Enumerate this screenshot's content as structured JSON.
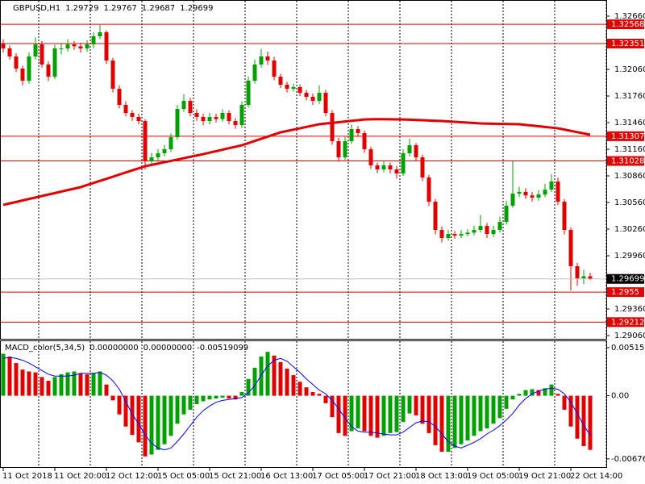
{
  "chart_data": {
    "type": "candlestick",
    "symbol": "GBPUSD,H1",
    "categories": [
      "11 Oct 2018",
      null,
      null,
      null,
      null,
      null,
      null,
      null,
      "11 Oct 20:00",
      null,
      null,
      null,
      null,
      null,
      null,
      null,
      "12 Oct 12:00",
      null,
      null,
      null,
      null,
      null,
      null,
      null,
      "15 Oct 05:00",
      null,
      null,
      null,
      null,
      null,
      null,
      null,
      "15 Oct 21:00",
      null,
      null,
      null,
      null,
      null,
      null,
      null,
      "16 Oct 13:00",
      null,
      null,
      null,
      null,
      null,
      null,
      null,
      "17 Oct 05:00",
      null,
      null,
      null,
      null,
      null,
      null,
      null,
      "17 Oct 21:00",
      null,
      null,
      null,
      null,
      null,
      null,
      null,
      "18 Oct 13:00",
      null,
      null,
      null,
      null,
      null,
      null,
      null,
      "19 Oct 05:00",
      null,
      null,
      null,
      null,
      null,
      null,
      null,
      "19 Oct 21:00",
      null,
      null,
      null,
      null,
      null,
      null,
      null,
      "22 Oct 14:00",
      null,
      null,
      null
    ],
    "open": [
      1.3235,
      1.32296,
      1.32206,
      1.32069,
      1.31933,
      1.32206,
      1.32342,
      1.32115,
      1.31978,
      1.32296,
      1.32296,
      1.32342,
      1.3232,
      1.32296,
      1.32342,
      1.32433,
      1.32478,
      1.3216,
      1.31842,
      1.3166,
      1.31569,
      1.31524,
      1.31478,
      1.31024,
      1.31069,
      1.31115,
      1.3116,
      1.31296,
      1.31615,
      1.31705,
      1.31569,
      1.31524,
      1.31478,
      1.31524,
      1.315,
      1.31569,
      1.31478,
      1.31433,
      1.3166,
      1.31933,
      1.32115,
      1.32206,
      1.3216,
      1.31978,
      1.31887,
      1.31842,
      1.3186,
      1.31796,
      1.31751,
      1.31705,
      1.31796,
      1.31569,
      1.31251,
      1.31069,
      1.31251,
      1.31387,
      1.31342,
      1.3116,
      1.30978,
      1.30933,
      1.30978,
      1.30933,
      1.30887,
      1.31115,
      1.31205,
      1.31069,
      1.30842,
      1.30569,
      1.30251,
      1.3016,
      1.30205,
      1.30187,
      1.30205,
      1.3022,
      1.30251,
      1.30296,
      1.30205,
      1.30251,
      1.30342,
      1.30524,
      1.3066,
      1.3068,
      1.3064,
      1.30615,
      1.3065,
      1.30705,
      1.30796,
      1.30569,
      1.30251,
      1.29842,
      1.29705,
      1.29729
    ],
    "high": [
      1.324,
      1.3233,
      1.3224,
      1.321,
      1.3225,
      1.3242,
      1.3238,
      1.3215,
      1.3234,
      1.3236,
      1.324,
      1.3238,
      1.3236,
      1.3239,
      1.3248,
      1.3256,
      1.325,
      1.3219,
      1.3188,
      1.317,
      1.316,
      1.3156,
      1.315,
      1.3112,
      1.3116,
      1.3121,
      1.3134,
      1.3166,
      1.3178,
      1.3174,
      1.3161,
      1.3156,
      1.3157,
      1.3156,
      1.3161,
      1.316,
      1.3151,
      1.317,
      1.3198,
      1.3217,
      1.3229,
      1.3226,
      1.322,
      1.3201,
      1.3192,
      1.319,
      1.3189,
      1.3183,
      1.3179,
      1.3188,
      1.3183,
      1.316,
      1.3129,
      1.313,
      1.3144,
      1.3142,
      1.3137,
      1.3119,
      1.3101,
      1.3102,
      1.3101,
      1.3097,
      1.3116,
      1.3128,
      1.3123,
      1.311,
      1.3087,
      1.306,
      1.3029,
      1.3025,
      1.3024,
      1.3025,
      1.3026,
      1.303,
      1.3042,
      1.3033,
      1.303,
      1.304,
      1.3058,
      1.31024,
      1.3074,
      1.3072,
      1.3068,
      1.307,
      1.3077,
      1.3088,
      1.3084,
      1.306,
      1.3028,
      1.2988,
      1.298,
      1.29767
    ],
    "low": [
      1.3225,
      1.3217,
      1.3203,
      1.3188,
      1.319,
      1.3217,
      1.3208,
      1.3193,
      1.3195,
      1.3223,
      1.3226,
      1.3228,
      1.3225,
      1.3226,
      1.323,
      1.324,
      1.3212,
      1.318,
      1.3162,
      1.3153,
      1.3148,
      1.3144,
      1.30933,
      1.3099,
      1.3103,
      1.3108,
      1.3113,
      1.3127,
      1.3158,
      1.3153,
      1.3148,
      1.3143,
      1.3144,
      1.3146,
      1.3147,
      1.3144,
      1.3139,
      1.314,
      1.3163,
      1.319,
      1.3208,
      1.3211,
      1.3194,
      1.3185,
      1.318,
      1.3181,
      1.3176,
      1.3171,
      1.3166,
      1.3167,
      1.3153,
      1.3121,
      1.3102,
      1.3104,
      1.3122,
      1.313,
      1.3112,
      1.3094,
      1.3089,
      1.309,
      1.3089,
      1.3083,
      1.3086,
      1.3108,
      1.3103,
      1.308,
      1.3052,
      1.302,
      1.3011,
      1.3013,
      1.3015,
      1.3016,
      1.3018,
      1.3019,
      1.3022,
      1.3016,
      1.3017,
      1.3022,
      1.3031,
      1.305,
      1.3062,
      1.306,
      1.3057,
      1.3058,
      1.3062,
      1.3068,
      1.3053,
      1.302,
      1.29569,
      1.2962,
      1.2964,
      1.29687
    ],
    "close": [
      1.32296,
      1.32206,
      1.32069,
      1.31933,
      1.32206,
      1.32342,
      1.32115,
      1.31978,
      1.32296,
      1.32296,
      1.32342,
      1.3232,
      1.32296,
      1.32342,
      1.32433,
      1.32478,
      1.3216,
      1.31842,
      1.3166,
      1.31569,
      1.31524,
      1.31478,
      1.31024,
      1.31069,
      1.31115,
      1.3116,
      1.31296,
      1.31615,
      1.31705,
      1.31569,
      1.31524,
      1.31478,
      1.31524,
      1.315,
      1.31569,
      1.31478,
      1.31433,
      1.3166,
      1.31933,
      1.32115,
      1.32206,
      1.3216,
      1.31978,
      1.31887,
      1.31842,
      1.3186,
      1.31796,
      1.31751,
      1.31705,
      1.31796,
      1.31569,
      1.31251,
      1.31069,
      1.31251,
      1.31387,
      1.31342,
      1.3116,
      1.30978,
      1.30933,
      1.30978,
      1.30933,
      1.30887,
      1.31115,
      1.31205,
      1.31069,
      1.30842,
      1.30569,
      1.30251,
      1.3016,
      1.30205,
      1.30187,
      1.30205,
      1.3022,
      1.30251,
      1.30296,
      1.30205,
      1.30251,
      1.30342,
      1.30524,
      1.3066,
      1.3068,
      1.3064,
      1.30615,
      1.3065,
      1.30705,
      1.30796,
      1.30569,
      1.30251,
      1.29842,
      1.29705,
      1.29729,
      1.29699
    ],
    "up_color": "#00a000",
    "down_color": "#e00000",
    "ma": {
      "color": "#e00000",
      "values": [
        1.30533,
        1.3055,
        1.30566,
        1.30583,
        1.306,
        1.30616,
        1.30633,
        1.3065,
        1.30666,
        1.30683,
        1.307,
        1.30716,
        1.30733,
        1.30757,
        1.3078,
        1.30804,
        1.30827,
        1.30851,
        1.30875,
        1.30898,
        1.30922,
        1.30945,
        1.30969,
        1.30984,
        1.30999,
        1.31014,
        1.31029,
        1.31044,
        1.3106,
        1.31075,
        1.3109,
        1.31105,
        1.31122,
        1.31138,
        1.31155,
        1.31172,
        1.31188,
        1.31205,
        1.31229,
        1.31254,
        1.31278,
        1.31302,
        1.31327,
        1.31351,
        1.31366,
        1.31381,
        1.31396,
        1.31412,
        1.31427,
        1.31442,
        1.3145,
        1.31457,
        1.31465,
        1.31473,
        1.31481,
        1.31488,
        1.31496,
        1.31498,
        1.31499,
        1.31499,
        1.31498,
        1.31497,
        1.31496,
        1.31493,
        1.3149,
        1.31487,
        1.31484,
        1.31481,
        1.31478,
        1.31474,
        1.31469,
        1.31465,
        1.3146,
        1.31456,
        1.31451,
        1.31449,
        1.31448,
        1.31446,
        1.31445,
        1.31443,
        1.31442,
        1.31434,
        1.31427,
        1.31419,
        1.31411,
        1.31404,
        1.31396,
        1.31382,
        1.31367,
        1.31353,
        1.31338,
        1.31324
      ]
    },
    "levels": [
      1.32568,
      1.32351,
      1.31307,
      1.31028,
      1.2955,
      1.29212
    ],
    "level_color": "#e00000",
    "current_price_color": "#c0c0c0",
    "ylim": [
      1.29024,
      1.32842
    ],
    "yticks": [
      {
        "value": 1.3266,
        "label": "1.32660"
      },
      {
        "value": 1.3206,
        "label": "1.32060"
      },
      {
        "value": 1.3176,
        "label": "1.31760"
      },
      {
        "value": 1.3146,
        "label": "1.31460"
      },
      {
        "value": 1.3116,
        "label": "1.31160"
      },
      {
        "value": 1.3086,
        "label": "1.30860"
      },
      {
        "value": 1.3056,
        "label": "1.30560"
      },
      {
        "value": 1.3026,
        "label": "1.30260"
      },
      {
        "value": 1.2996,
        "label": "1.29960"
      },
      {
        "value": 1.2936,
        "label": "1.29360"
      },
      {
        "value": 1.2906,
        "label": "1.29060"
      }
    ],
    "indicator": {
      "type": "macd",
      "title": "MACD_color(5,34,5)",
      "readout": [
        "0.00000000",
        "0.00000000",
        "-0.00519099"
      ],
      "histogram": [
        0.0045,
        0.0042,
        0.0035,
        0.0028,
        0.0026,
        0.0025,
        0.002,
        0.0016,
        0.002,
        0.0023,
        0.0025,
        0.0026,
        0.0024,
        0.0023,
        0.0024,
        0.0026,
        0.0012,
        -0.0005,
        -0.002,
        -0.0033,
        -0.0042,
        -0.005,
        -0.0065,
        -0.0063,
        -0.0058,
        -0.0052,
        -0.0043,
        -0.003,
        -0.002,
        -0.0015,
        -0.0009,
        -0.0006,
        -0.0004,
        -0.0003,
        -0.0002,
        -0.0003,
        -0.0004,
        0.0004,
        0.0018,
        0.003,
        0.0042,
        0.0047,
        0.0043,
        0.0036,
        0.0029,
        0.0022,
        0.0015,
        0.0009,
        0.0004,
        0.0002,
        -0.0008,
        -0.0023,
        -0.004,
        -0.0043,
        -0.0038,
        -0.0035,
        -0.0038,
        -0.0043,
        -0.0045,
        -0.0043,
        -0.004,
        -0.0039,
        -0.0028,
        -0.0019,
        -0.0021,
        -0.003,
        -0.004,
        -0.0053,
        -0.006,
        -0.006,
        -0.0056,
        -0.0052,
        -0.0048,
        -0.0043,
        -0.0038,
        -0.0035,
        -0.003,
        -0.0024,
        -0.0014,
        -0.0004,
        0.0002,
        0.0006,
        0.0007,
        0.0006,
        0.0008,
        0.0012,
        0.0002,
        -0.0015,
        -0.0033,
        -0.0046,
        -0.0054,
        -0.0058
      ],
      "signal": [
        0.004,
        0.0041,
        0.004,
        0.0038,
        0.0035,
        0.0031,
        0.0027,
        0.0023,
        0.0021,
        0.0021,
        0.0021,
        0.0022,
        0.0024,
        0.0024,
        0.0024,
        0.0025,
        0.0022,
        0.0016,
        0.0007,
        -0.0006,
        -0.002,
        -0.003,
        -0.0042,
        -0.0051,
        -0.0056,
        -0.0058,
        -0.0056,
        -0.0049,
        -0.0041,
        -0.0032,
        -0.0023,
        -0.0016,
        -0.0011,
        -0.0007,
        -0.0005,
        -0.0004,
        -0.0003,
        -0.0002,
        0.0003,
        0.0011,
        0.0022,
        0.0032,
        0.0038,
        0.004,
        0.0037,
        0.0031,
        0.0025,
        0.0018,
        0.0012,
        0.0006,
        0.0002,
        -0.0005,
        -0.0014,
        -0.0024,
        -0.0033,
        -0.0038,
        -0.0039,
        -0.0039,
        -0.004,
        -0.0041,
        -0.0042,
        -0.0042,
        -0.0039,
        -0.0034,
        -0.0029,
        -0.0027,
        -0.0028,
        -0.0033,
        -0.0041,
        -0.0049,
        -0.0054,
        -0.0056,
        -0.0053,
        -0.005,
        -0.0046,
        -0.0041,
        -0.0037,
        -0.0032,
        -0.0026,
        -0.0019,
        -0.001,
        -0.0003,
        0.0002,
        0.0005,
        0.0007,
        0.0008,
        0.0007,
        0.0002,
        -0.0007,
        -0.0019,
        -0.0032,
        -0.0042
      ],
      "up_color": "#00a000",
      "down_color": "#e00000",
      "signal_color": "#0000ff",
      "ylim": [
        -0.00773,
        0.00584
      ],
      "yticks": [
        0.005152,
        {
          "value": 0,
          "label": "0.00"
        },
        -0.006767
      ]
    }
  }
}
